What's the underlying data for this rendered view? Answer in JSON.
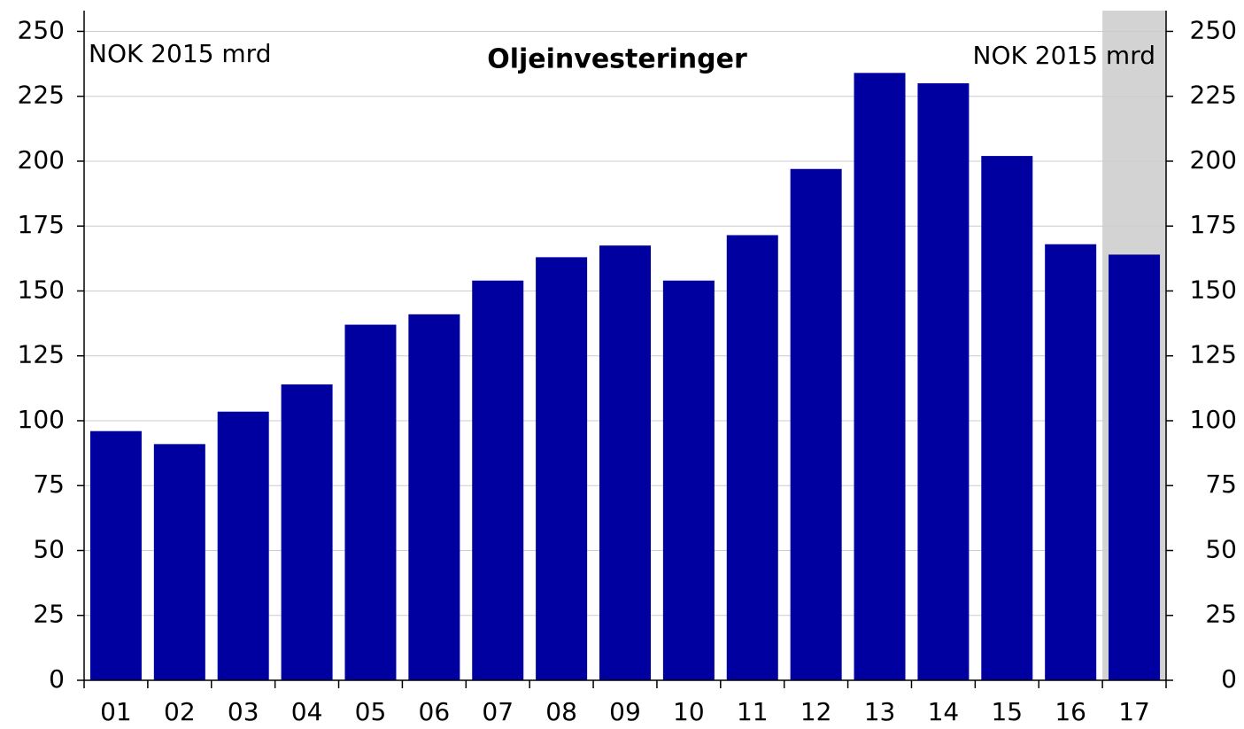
{
  "chart_data": {
    "type": "bar",
    "title": "Oljeinvesteringer",
    "annotations": [
      "NOK 2015 mrd",
      "NOK 2015 mrd"
    ],
    "categories": [
      "01",
      "02",
      "03",
      "04",
      "05",
      "06",
      "07",
      "08",
      "09",
      "10",
      "11",
      "12",
      "13",
      "14",
      "15",
      "16",
      "17"
    ],
    "values": [
      96,
      91,
      103.5,
      114,
      137,
      141,
      154,
      163,
      167.5,
      154,
      171.5,
      197,
      234,
      230,
      202,
      168,
      164
    ],
    "color": "#0000a0",
    "shaded_categories": [
      "17"
    ],
    "shade_color": "#d3d3d3",
    "ylim": [
      0,
      258
    ],
    "yticks": [
      0,
      25,
      50,
      75,
      100,
      125,
      150,
      175,
      200,
      225,
      250
    ],
    "y2lim": [
      0,
      258
    ],
    "y2ticks": [
      0,
      25,
      50,
      75,
      100,
      125,
      150,
      175,
      200,
      225,
      250
    ],
    "grid": true
  }
}
